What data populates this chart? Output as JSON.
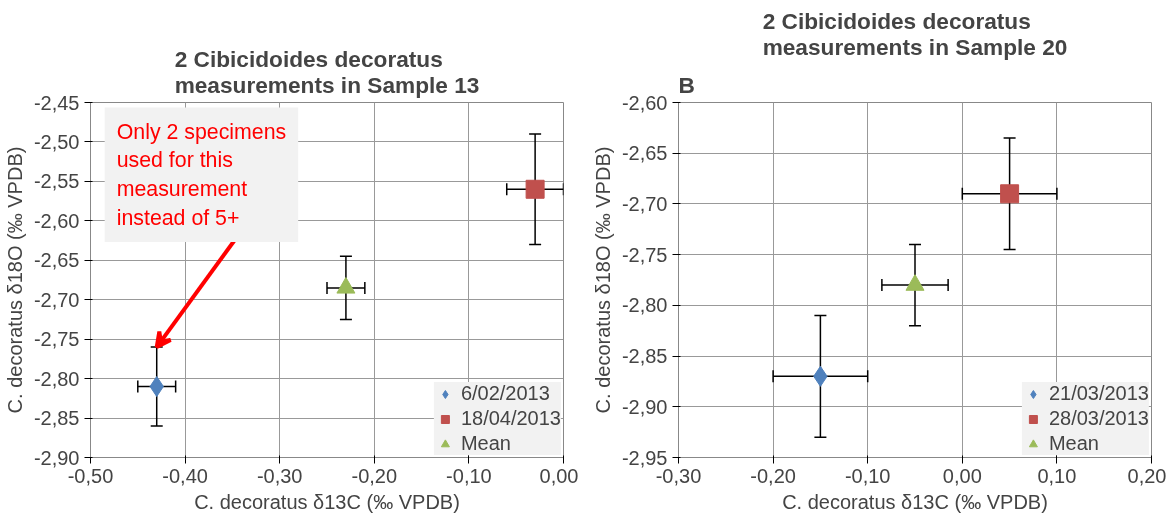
{
  "chart_data": [
    {
      "type": "scatter",
      "title": "2 Cibicidoides decoratus\nmeasurements in Sample 13",
      "xlabel": "C. decoratus δ13C (‰ VPDB)",
      "ylabel": "C. decoratus δ18O (‰ VPDB)",
      "xlim": [
        -0.5,
        0.0
      ],
      "xticks": [
        {
          "value": -0.5,
          "label": "-0,50"
        },
        {
          "value": -0.4,
          "label": "-0,40"
        },
        {
          "value": -0.3,
          "label": "-0,30"
        },
        {
          "value": -0.2,
          "label": "-0,20"
        },
        {
          "value": -0.1,
          "label": "-0,10"
        },
        {
          "value": 0.0,
          "label": "0,00"
        }
      ],
      "ylim": [
        -2.9,
        -2.45
      ],
      "yticks": [
        {
          "value": -2.45,
          "label": "-2,45"
        },
        {
          "value": -2.5,
          "label": "-2,50"
        },
        {
          "value": -2.55,
          "label": "-2,55"
        },
        {
          "value": -2.6,
          "label": "-2,60"
        },
        {
          "value": -2.65,
          "label": "-2,65"
        },
        {
          "value": -2.7,
          "label": "-2,70"
        },
        {
          "value": -2.75,
          "label": "-2,75"
        },
        {
          "value": -2.8,
          "label": "-2,80"
        },
        {
          "value": -2.85,
          "label": "-2,85"
        },
        {
          "value": -2.9,
          "label": "-2,90"
        }
      ],
      "grid": true,
      "legend": "bottom right",
      "series": [
        {
          "name": "6/02/2013",
          "color": "#4f81bd",
          "marker": "diamond",
          "x": [
            -0.43
          ],
          "values": [
            -2.81
          ],
          "errors": [
            0.05
          ],
          "xerrors": [
            0.02
          ]
        },
        {
          "name": "18/04/2013",
          "color": "#c0504d",
          "marker": "square",
          "x": [
            -0.03
          ],
          "values": [
            -2.56
          ],
          "errors": [
            0.07
          ],
          "xerrors": [
            0.03
          ]
        },
        {
          "name": "Mean",
          "color": "#9bbb59",
          "marker": "triangle",
          "x": [
            -0.23
          ],
          "values": [
            -2.685
          ],
          "errors": [
            0.04
          ],
          "xerrors": [
            0.02
          ]
        }
      ],
      "annotations": [
        {
          "text": "Only 2 specimens\nused for this\nmeasurement\ninstead of 5+",
          "x": -0.43,
          "y": -2.76
        }
      ]
    },
    {
      "type": "scatter",
      "title": "2 Cibicidoides decoratus\nmeasurements in Sample 20",
      "xlabel": "C. decoratus δ13C (‰ VPDB)",
      "ylabel": "C. decoratus δ18O (‰ VPDB)",
      "xlim": [
        -0.3,
        0.2
      ],
      "xticks": [
        {
          "value": -0.3,
          "label": "-0,30"
        },
        {
          "value": -0.2,
          "label": "-0,20"
        },
        {
          "value": -0.1,
          "label": "-0,10"
        },
        {
          "value": 0.0,
          "label": "0,00"
        },
        {
          "value": 0.1,
          "label": "0,10"
        },
        {
          "value": 0.2,
          "label": "0,20"
        }
      ],
      "ylim": [
        -2.95,
        -2.6
      ],
      "yticks": [
        {
          "value": -2.6,
          "label": "-2,60"
        },
        {
          "value": -2.65,
          "label": "-2,65"
        },
        {
          "value": -2.7,
          "label": "-2,70"
        },
        {
          "value": -2.75,
          "label": "-2,75"
        },
        {
          "value": -2.8,
          "label": "-2,80"
        },
        {
          "value": -2.85,
          "label": "-2,85"
        },
        {
          "value": -2.9,
          "label": "-2,90"
        },
        {
          "value": -2.95,
          "label": "-2,95"
        }
      ],
      "grid": true,
      "legend": "bottom right",
      "series": [
        {
          "name": "21/03/2013",
          "color": "#4f81bd",
          "marker": "diamond",
          "x": [
            -0.15
          ],
          "values": [
            -2.87
          ],
          "errors": [
            0.06
          ],
          "xerrors": [
            0.05
          ]
        },
        {
          "name": "28/03/2013",
          "color": "#c0504d",
          "marker": "square",
          "x": [
            0.05
          ],
          "values": [
            -2.69
          ],
          "errors": [
            0.055
          ],
          "xerrors": [
            0.05
          ]
        },
        {
          "name": "Mean",
          "color": "#9bbb59",
          "marker": "triangle",
          "x": [
            -0.05
          ],
          "values": [
            -2.78
          ],
          "errors": [
            0.04
          ],
          "xerrors": [
            0.035
          ]
        }
      ],
      "annotations": [
        "B"
      ]
    }
  ]
}
